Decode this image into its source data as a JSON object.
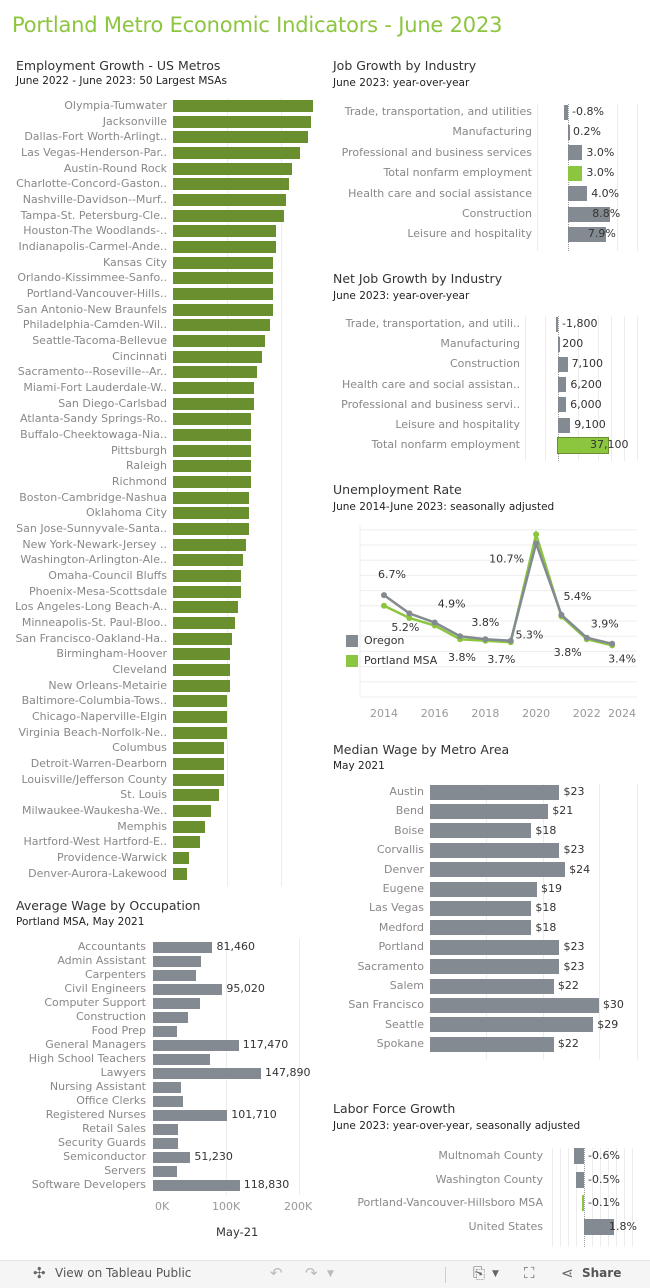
{
  "header": {
    "title": "Portland Metro Economic Indicators - June 2023"
  },
  "colors": {
    "title_green": "#8cc63f",
    "metro_bar_green": "#6a8f2f",
    "bar_gray": "#838a91",
    "highlight_green": "#8cc63f",
    "oregon_line": "#838a91",
    "portland_line": "#8cc63f"
  },
  "chart_data": [
    {
      "type": "bar",
      "title": "Employment Growth - US Metros",
      "subtitle": "June 2022 - June 2023: 50 Largest MSAs",
      "unit": "%",
      "categories": [
        "Olympia-Tumwater",
        "Jacksonville",
        "Dallas-Fort Worth-Arlingt..",
        "Las Vegas-Henderson-Par..",
        "Austin-Round Rock",
        "Charlotte-Concord-Gaston..",
        "Nashville-Davidson--Murf..",
        "Tampa-St. Petersburg-Cle..",
        "Houston-The Woodlands-..",
        "Indianapolis-Carmel-Ande..",
        "Kansas City",
        "Orlando-Kissimmee-Sanfo..",
        "Portland-Vancouver-Hills..",
        "San Antonio-New Braunfels",
        "Philadelphia-Camden-Wil..",
        "Seattle-Tacoma-Bellevue",
        "Cincinnati",
        "Sacramento--Roseville--Ar..",
        "Miami-Fort Lauderdale-W..",
        "San Diego-Carlsbad",
        "Atlanta-Sandy Springs-Ro..",
        "Buffalo-Cheektowaga-Nia..",
        "Pittsburgh",
        "Raleigh",
        "Richmond",
        "Boston-Cambridge-Nashua",
        "Oklahoma City",
        "San Jose-Sunnyvale-Santa..",
        "New York-Newark-Jersey ..",
        "Washington-Arlington-Ale..",
        "Omaha-Council Bluffs",
        "Phoenix-Mesa-Scottsdale",
        "Los Angeles-Long Beach-A..",
        "Minneapolis-St. Paul-Bloo..",
        "San Francisco-Oakland-Ha..",
        "Birmingham-Hoover",
        "Cleveland",
        "New Orleans-Metairie",
        "Baltimore-Columbia-Tows..",
        "Chicago-Naperville-Elgin",
        "Virginia Beach-Norfolk-Ne..",
        "Columbus",
        "Detroit-Warren-Dearborn",
        "Louisville/Jefferson County",
        "St. Louis",
        "Milwaukee-Waukesha-We..",
        "Memphis",
        "Hartford-West Hartford-E..",
        "Providence-Warwick",
        "Denver-Aurora-Lakewood"
      ],
      "values": [
        5.2,
        5.1,
        5.0,
        4.7,
        4.4,
        4.3,
        4.2,
        4.1,
        3.8,
        3.8,
        3.7,
        3.7,
        3.7,
        3.7,
        3.6,
        3.4,
        3.3,
        3.1,
        3.0,
        3.0,
        2.9,
        2.9,
        2.9,
        2.9,
        2.9,
        2.8,
        2.8,
        2.8,
        2.7,
        2.6,
        2.5,
        2.5,
        2.4,
        2.3,
        2.2,
        2.1,
        2.1,
        2.1,
        2.0,
        2.0,
        2.0,
        1.9,
        1.9,
        1.9,
        1.7,
        1.4,
        1.2,
        1.0,
        0.6,
        0.5
      ],
      "value_labels": [],
      "grid": true
    },
    {
      "type": "bar",
      "title": "Job Growth by Industry",
      "subtitle": "June 2023: year-over-year",
      "categories": [
        "Trade, transportation, and utilities",
        "Manufacturing",
        "Professional and business services",
        "Total nonfarm employment",
        "Health care and social assistance",
        "Construction",
        "Leisure and hospitality"
      ],
      "values": [
        -0.8,
        0.2,
        3.0,
        3.0,
        4.0,
        8.8,
        7.9
      ],
      "value_labels": [
        "-0.8%",
        "0.2%",
        "3.0%",
        "3.0%",
        "4.0%",
        "8.8%",
        "7.9%"
      ],
      "highlight": "Total nonfarm employment",
      "grid": true
    },
    {
      "type": "bar",
      "title": "Net Job Growth by Industry",
      "subtitle": "June 2023: year-over-year",
      "categories": [
        "Trade, transportation, and utili..",
        "Manufacturing",
        "Construction",
        "Health care and social assistan..",
        "Professional and business servi..",
        "Leisure and hospitality",
        "Total nonfarm employment"
      ],
      "values": [
        -1800,
        200,
        7100,
        6200,
        6000,
        9100,
        37100
      ],
      "value_labels": [
        "-1,800",
        "200",
        "7,100",
        "6,200",
        "6,000",
        "9,100",
        "37,100"
      ],
      "highlight": "Total nonfarm employment",
      "grid": true
    },
    {
      "type": "line",
      "title": "Unemployment Rate",
      "subtitle": "June 2014-June 2023: seasonally adjusted",
      "x": [
        2014,
        2015,
        2016,
        2017,
        2018,
        2019,
        2020,
        2021,
        2022,
        2023
      ],
      "x_ticks": [
        "2014",
        "2016",
        "2018",
        "2020",
        "2022",
        "2024"
      ],
      "ylim": [
        0,
        11.3
      ],
      "series": [
        {
          "name": "Oregon",
          "values": [
            6.7,
            5.5,
            4.9,
            4.0,
            3.8,
            3.7,
            10.1,
            5.4,
            3.9,
            3.5
          ]
        },
        {
          "name": "Portland MSA",
          "values": [
            6.0,
            5.2,
            4.7,
            3.8,
            3.7,
            3.6,
            10.7,
            5.3,
            3.8,
            3.4
          ]
        }
      ],
      "annotations": [
        {
          "text": "6.7%",
          "x": 2014,
          "series": "Oregon"
        },
        {
          "text": "5.2%",
          "x": 2015,
          "series": "Portland MSA"
        },
        {
          "text": "4.9%",
          "x": 2016,
          "series": "Oregon"
        },
        {
          "text": "3.8%",
          "x": 2017,
          "series": "Portland MSA"
        },
        {
          "text": "3.8%",
          "x": 2018,
          "series": "Oregon"
        },
        {
          "text": "3.7%",
          "x": 2018,
          "series": "Portland MSA"
        },
        {
          "text": "10.7%",
          "x": 2020,
          "series": "Portland MSA"
        },
        {
          "text": "5.4%",
          "x": 2021,
          "series": "Oregon"
        },
        {
          "text": "5.3%",
          "x": 2021,
          "series": "Portland MSA"
        },
        {
          "text": "3.9%",
          "x": 2022,
          "series": "Oregon"
        },
        {
          "text": "3.8%",
          "x": 2022,
          "series": "Portland MSA"
        },
        {
          "text": "3.4%",
          "x": 2023,
          "series": "Portland MSA"
        }
      ],
      "legend": "left",
      "grid": true
    },
    {
      "type": "bar",
      "title": "Median Wage by Metro Area",
      "subtitle": "May 2021",
      "categories": [
        "Austin",
        "Bend",
        "Boise",
        "Corvallis",
        "Denver",
        "Eugene",
        "Las Vegas",
        "Medford",
        "Portland",
        "Sacramento",
        "Salem",
        "San Francisco",
        "Seattle",
        "Spokane"
      ],
      "values": [
        23,
        21,
        18,
        23,
        24,
        19,
        18,
        18,
        23,
        23,
        22,
        30,
        29,
        22
      ],
      "value_labels": [
        "$23",
        "$21",
        "$18",
        "$23",
        "$24",
        "$19",
        "$18",
        "$18",
        "$23",
        "$23",
        "$22",
        "$30",
        "$29",
        "$22"
      ],
      "grid": true
    },
    {
      "type": "bar",
      "title": "Average Wage by Occupation",
      "subtitle": "Portland MSA, May 2021",
      "xlabel": "May-21",
      "x_ticks": [
        "0K",
        "100K",
        "200K"
      ],
      "categories": [
        "Accountants",
        "Admin Assistant",
        "Carpenters",
        "Civil Engineers",
        "Computer Support",
        "Construction",
        "Food Prep",
        "General Managers",
        "High School Teachers",
        "Lawyers",
        "Nursing Assistant",
        "Office Clerks",
        "Registered Nurses",
        "Retail Sales",
        "Security Guards",
        "Semiconductor",
        "Servers",
        "Software Developers"
      ],
      "values": [
        81460,
        65700,
        58900,
        95020,
        64400,
        47900,
        32900,
        117470,
        78000,
        147890,
        38400,
        41100,
        101710,
        34200,
        34200,
        51230,
        32900,
        118830
      ],
      "value_labels": [
        "81,460",
        "",
        "",
        "95,020",
        "",
        "",
        "",
        "117,470",
        "",
        "147,890",
        "",
        "",
        "101,710",
        "",
        "",
        "51,230",
        "",
        "118,830"
      ],
      "grid": true
    },
    {
      "type": "bar",
      "title": "Labor Force Growth",
      "subtitle": "June 2023: year-over-year, seasonally adjusted",
      "categories": [
        "Multnomah County",
        "Washington County",
        "Portland-Vancouver-Hillsboro MSA",
        "United States"
      ],
      "values": [
        -0.6,
        -0.5,
        -0.1,
        1.8
      ],
      "value_labels": [
        "-0.6%",
        "-0.5%",
        "-0.1%",
        "1.8%"
      ],
      "highlight": "Portland-Vancouver-Hillsboro MSA",
      "grid": true
    }
  ],
  "footer": {
    "view_label": "View on Tableau Public",
    "share_label": "Share",
    "icons": [
      "tableau-logo-icon",
      "undo-icon",
      "redo-icon",
      "download-icon",
      "fullscreen-icon",
      "share-icon"
    ]
  }
}
